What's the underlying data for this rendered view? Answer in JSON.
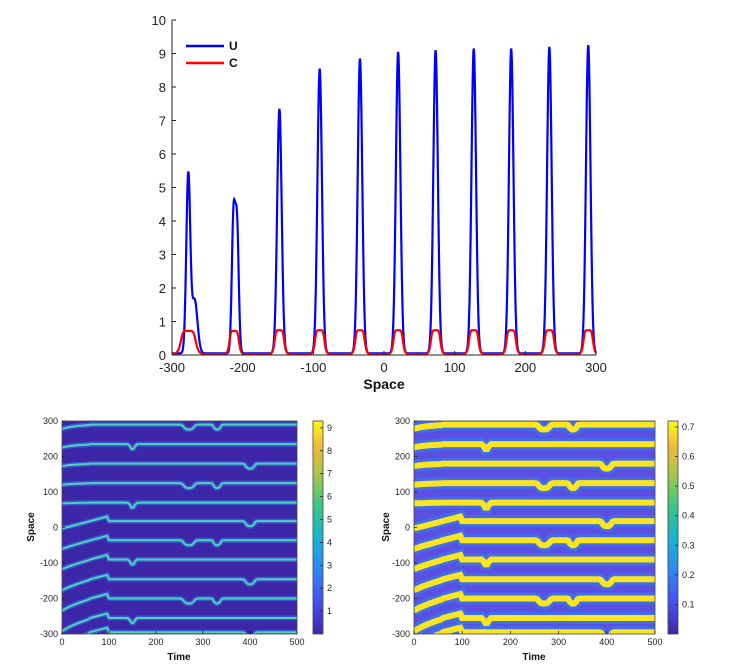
{
  "chart_data": [
    {
      "type": "line",
      "title": "",
      "xlabel": "Space",
      "ylabel": "",
      "xlim": [
        -300,
        300
      ],
      "ylim": [
        0,
        10
      ],
      "x_ticks": [
        "-300",
        "-200",
        "-100",
        "0",
        "100",
        "200",
        "300"
      ],
      "y_ticks": [
        "0",
        "1",
        "2",
        "3",
        "4",
        "5",
        "6",
        "7",
        "8",
        "9",
        "10"
      ],
      "legend": {
        "placement": "top-left",
        "entries": [
          "U",
          "C"
        ]
      },
      "peaks": {
        "x": [
          -277,
          -212,
          -148,
          -91,
          -34,
          20,
          73,
          127,
          180,
          234,
          289
        ],
        "U": [
          5.3,
          4.25,
          7.3,
          8.5,
          8.8,
          9.0,
          9.05,
          9.1,
          9.1,
          9.15,
          9.2
        ],
        "C": [
          0.7,
          0.7,
          0.72,
          0.72,
          0.72,
          0.72,
          0.72,
          0.72,
          0.72,
          0.72,
          0.72
        ]
      },
      "series": [
        {
          "name": "U",
          "color": "#0000ff",
          "baseline": 0.05
        },
        {
          "name": "C",
          "color": "#ff0000",
          "baseline": 0.02
        }
      ]
    },
    {
      "type": "heatmap",
      "xlabel": "Time",
      "ylabel": "Space",
      "xlim": [
        0,
        500
      ],
      "ylim": [
        -300,
        300
      ],
      "x_ticks": [
        "0",
        "100",
        "200",
        "300",
        "400",
        "500"
      ],
      "y_ticks": [
        "300",
        "200",
        "100",
        "0",
        "-100",
        "-200",
        "-300"
      ],
      "colorbar": {
        "ticks": [
          "1",
          "2",
          "3",
          "4",
          "5",
          "6",
          "7",
          "8",
          "9"
        ],
        "min": 0,
        "max": 9.3
      },
      "colormap": "parula",
      "variable": "U"
    },
    {
      "type": "heatmap",
      "xlabel": "Time",
      "ylabel": "Space",
      "xlim": [
        0,
        500
      ],
      "ylim": [
        -300,
        300
      ],
      "x_ticks": [
        "0",
        "100",
        "200",
        "300",
        "400",
        "500"
      ],
      "y_ticks": [
        "300",
        "200",
        "100",
        "0",
        "-100",
        "-200",
        "-300"
      ],
      "colorbar": {
        "ticks": [
          "0.1",
          "0.2",
          "0.3",
          "0.4",
          "0.5",
          "0.6",
          "0.7"
        ],
        "min": 0,
        "max": 0.72
      },
      "colormap": "parula",
      "variable": "C"
    }
  ]
}
